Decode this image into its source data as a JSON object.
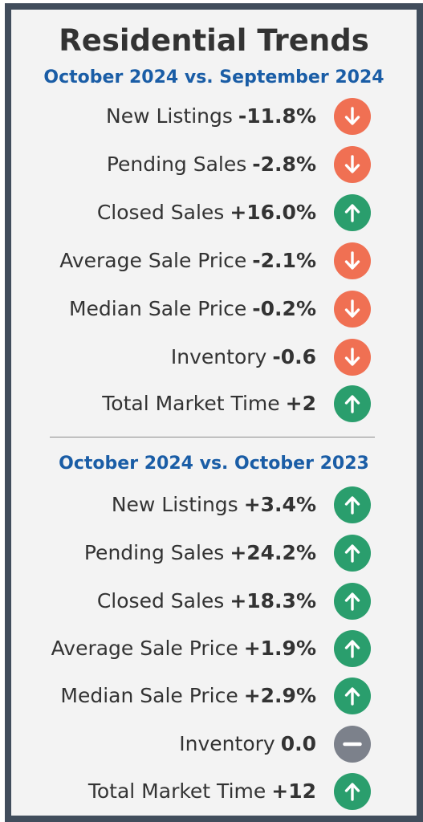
{
  "title": "Residential Trends",
  "colors": {
    "down": "#f07053",
    "up": "#2a9e6d",
    "neutral": "#7c818b",
    "subtitle": "#1a5da6",
    "border": "#414d5c"
  },
  "section1": {
    "subtitle": "October 2024 vs. September 2024",
    "rows": [
      {
        "label": "New Listings",
        "value": "-11.8%",
        "trend": "down"
      },
      {
        "label": "Pending Sales",
        "value": "-2.8%",
        "trend": "down"
      },
      {
        "label": "Closed Sales",
        "value": "+16.0%",
        "trend": "up"
      },
      {
        "label": "Average Sale Price",
        "value": "-2.1%",
        "trend": "down"
      },
      {
        "label": "Median Sale Price",
        "value": "-0.2%",
        "trend": "down"
      },
      {
        "label": "Inventory",
        "value": "-0.6",
        "trend": "down"
      },
      {
        "label": "Total Market Time",
        "value": "+2",
        "trend": "up"
      }
    ]
  },
  "section2": {
    "subtitle": "October 2024 vs. October 2023",
    "rows": [
      {
        "label": "New Listings",
        "value": "+3.4%",
        "trend": "up"
      },
      {
        "label": "Pending Sales",
        "value": "+24.2%",
        "trend": "up"
      },
      {
        "label": "Closed Sales",
        "value": "+18.3%",
        "trend": "up"
      },
      {
        "label": "Average Sale Price",
        "value": "+1.9%",
        "trend": "up"
      },
      {
        "label": "Median Sale Price",
        "value": "+2.9%",
        "trend": "up"
      },
      {
        "label": "Inventory",
        "value": "0.0",
        "trend": "neutral"
      },
      {
        "label": "Total Market Time",
        "value": "+12",
        "trend": "up"
      }
    ]
  }
}
